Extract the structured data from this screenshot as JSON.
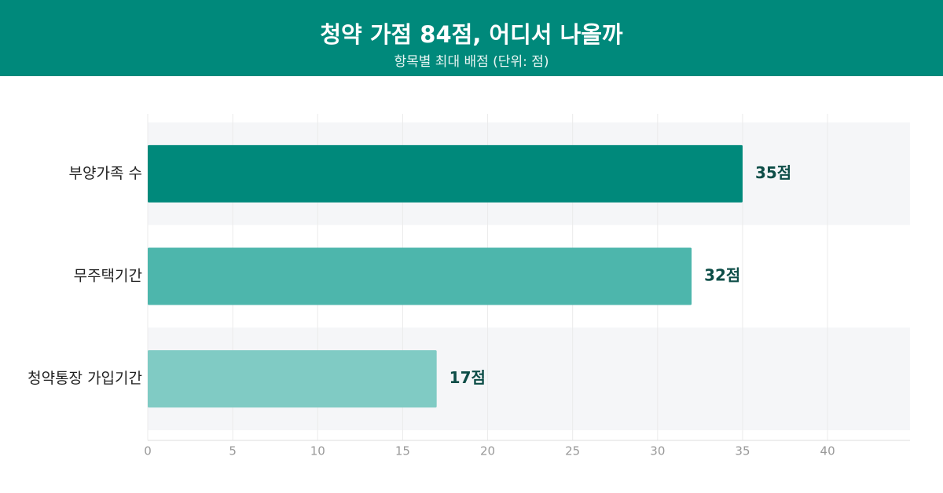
{
  "chart_data": {
    "type": "hbar",
    "title": "청약 가점 84점, 어디서 나올까",
    "subtitle": "항목별 최대 배점 (단위: 점)",
    "categories": [
      "부양가족 수",
      "무주택기간",
      "청약통장 가입기간"
    ],
    "values": [
      35,
      32,
      17
    ],
    "value_labels": [
      "35점",
      "32점",
      "17점"
    ],
    "colors": [
      "#00897b",
      "#4db6ac",
      "#80cbc4"
    ],
    "xlim": [
      0,
      44.85
    ],
    "xticks": [
      0,
      5,
      10,
      15,
      20,
      25,
      30,
      35,
      40
    ],
    "grid": true
  }
}
